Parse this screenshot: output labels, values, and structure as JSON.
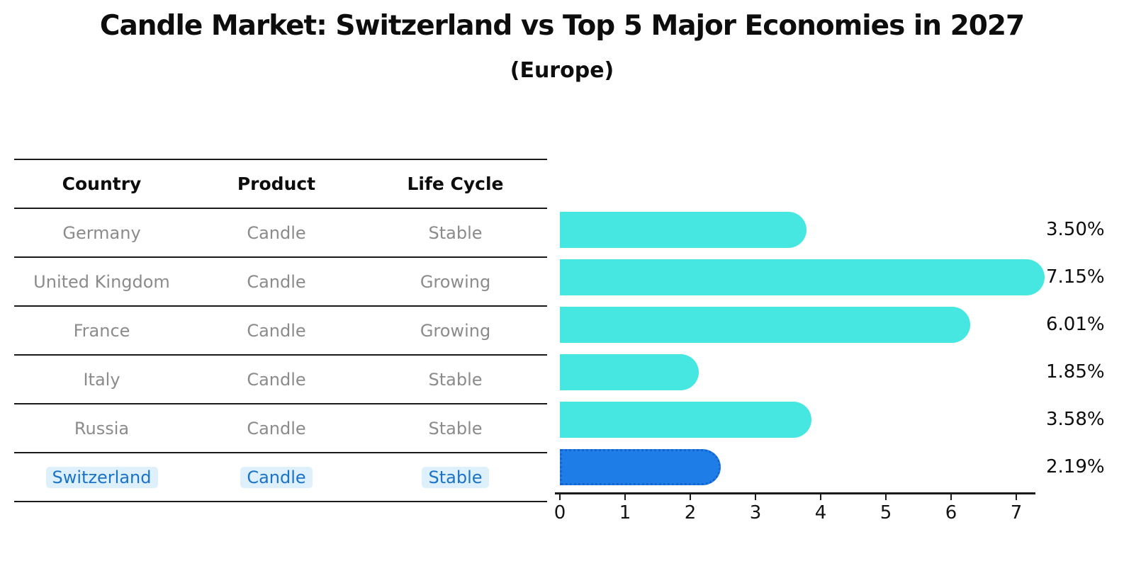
{
  "title": "Candle Market: Switzerland vs Top 5 Major Economies in 2027",
  "subtitle": "(Europe)",
  "table": {
    "columns": [
      "Country",
      "Product",
      "Life Cycle"
    ],
    "rows": [
      {
        "country": "Germany",
        "product": "Candle",
        "life_cycle": "Stable",
        "highlighted": false
      },
      {
        "country": "United Kingdom",
        "product": "Candle",
        "life_cycle": "Growing",
        "highlighted": false
      },
      {
        "country": "France",
        "product": "Candle",
        "life_cycle": "Growing",
        "highlighted": false
      },
      {
        "country": "Italy",
        "product": "Candle",
        "life_cycle": "Stable",
        "highlighted": false
      },
      {
        "country": "Russia",
        "product": "Candle",
        "life_cycle": "Stable",
        "highlighted": false
      },
      {
        "country": "Switzerland",
        "product": "Candle",
        "life_cycle": "Stable",
        "highlighted": true
      }
    ]
  },
  "chart_data": {
    "type": "bar",
    "orientation": "horizontal",
    "title": "Candle Market: Switzerland vs Top 5 Major Economies in 2027",
    "subtitle": "(Europe)",
    "categories": [
      "Germany",
      "United Kingdom",
      "France",
      "Italy",
      "Russia",
      "Switzerland"
    ],
    "values": [
      3.5,
      7.15,
      6.01,
      1.85,
      3.58,
      2.19
    ],
    "value_labels": [
      "3.50%",
      "7.15%",
      "6.01%",
      "1.85%",
      "3.58%",
      "2.19%"
    ],
    "highlight_index": 5,
    "xlabel": "",
    "ylabel": "",
    "x_ticks": [
      0,
      1,
      2,
      3,
      4,
      5,
      6,
      7
    ],
    "xlim": [
      0,
      7.3
    ],
    "grid": false,
    "legend": false,
    "bar_color": "#46e6e1",
    "highlight_bar_color": "#1e7de6",
    "highlight_bar_border_color": "#1464d2",
    "highlight_text_color": "#1b73c8",
    "highlight_text_bg": "#def0fc",
    "text_gray": "#8b8b8b",
    "axis_color": "#1a1a1a"
  }
}
